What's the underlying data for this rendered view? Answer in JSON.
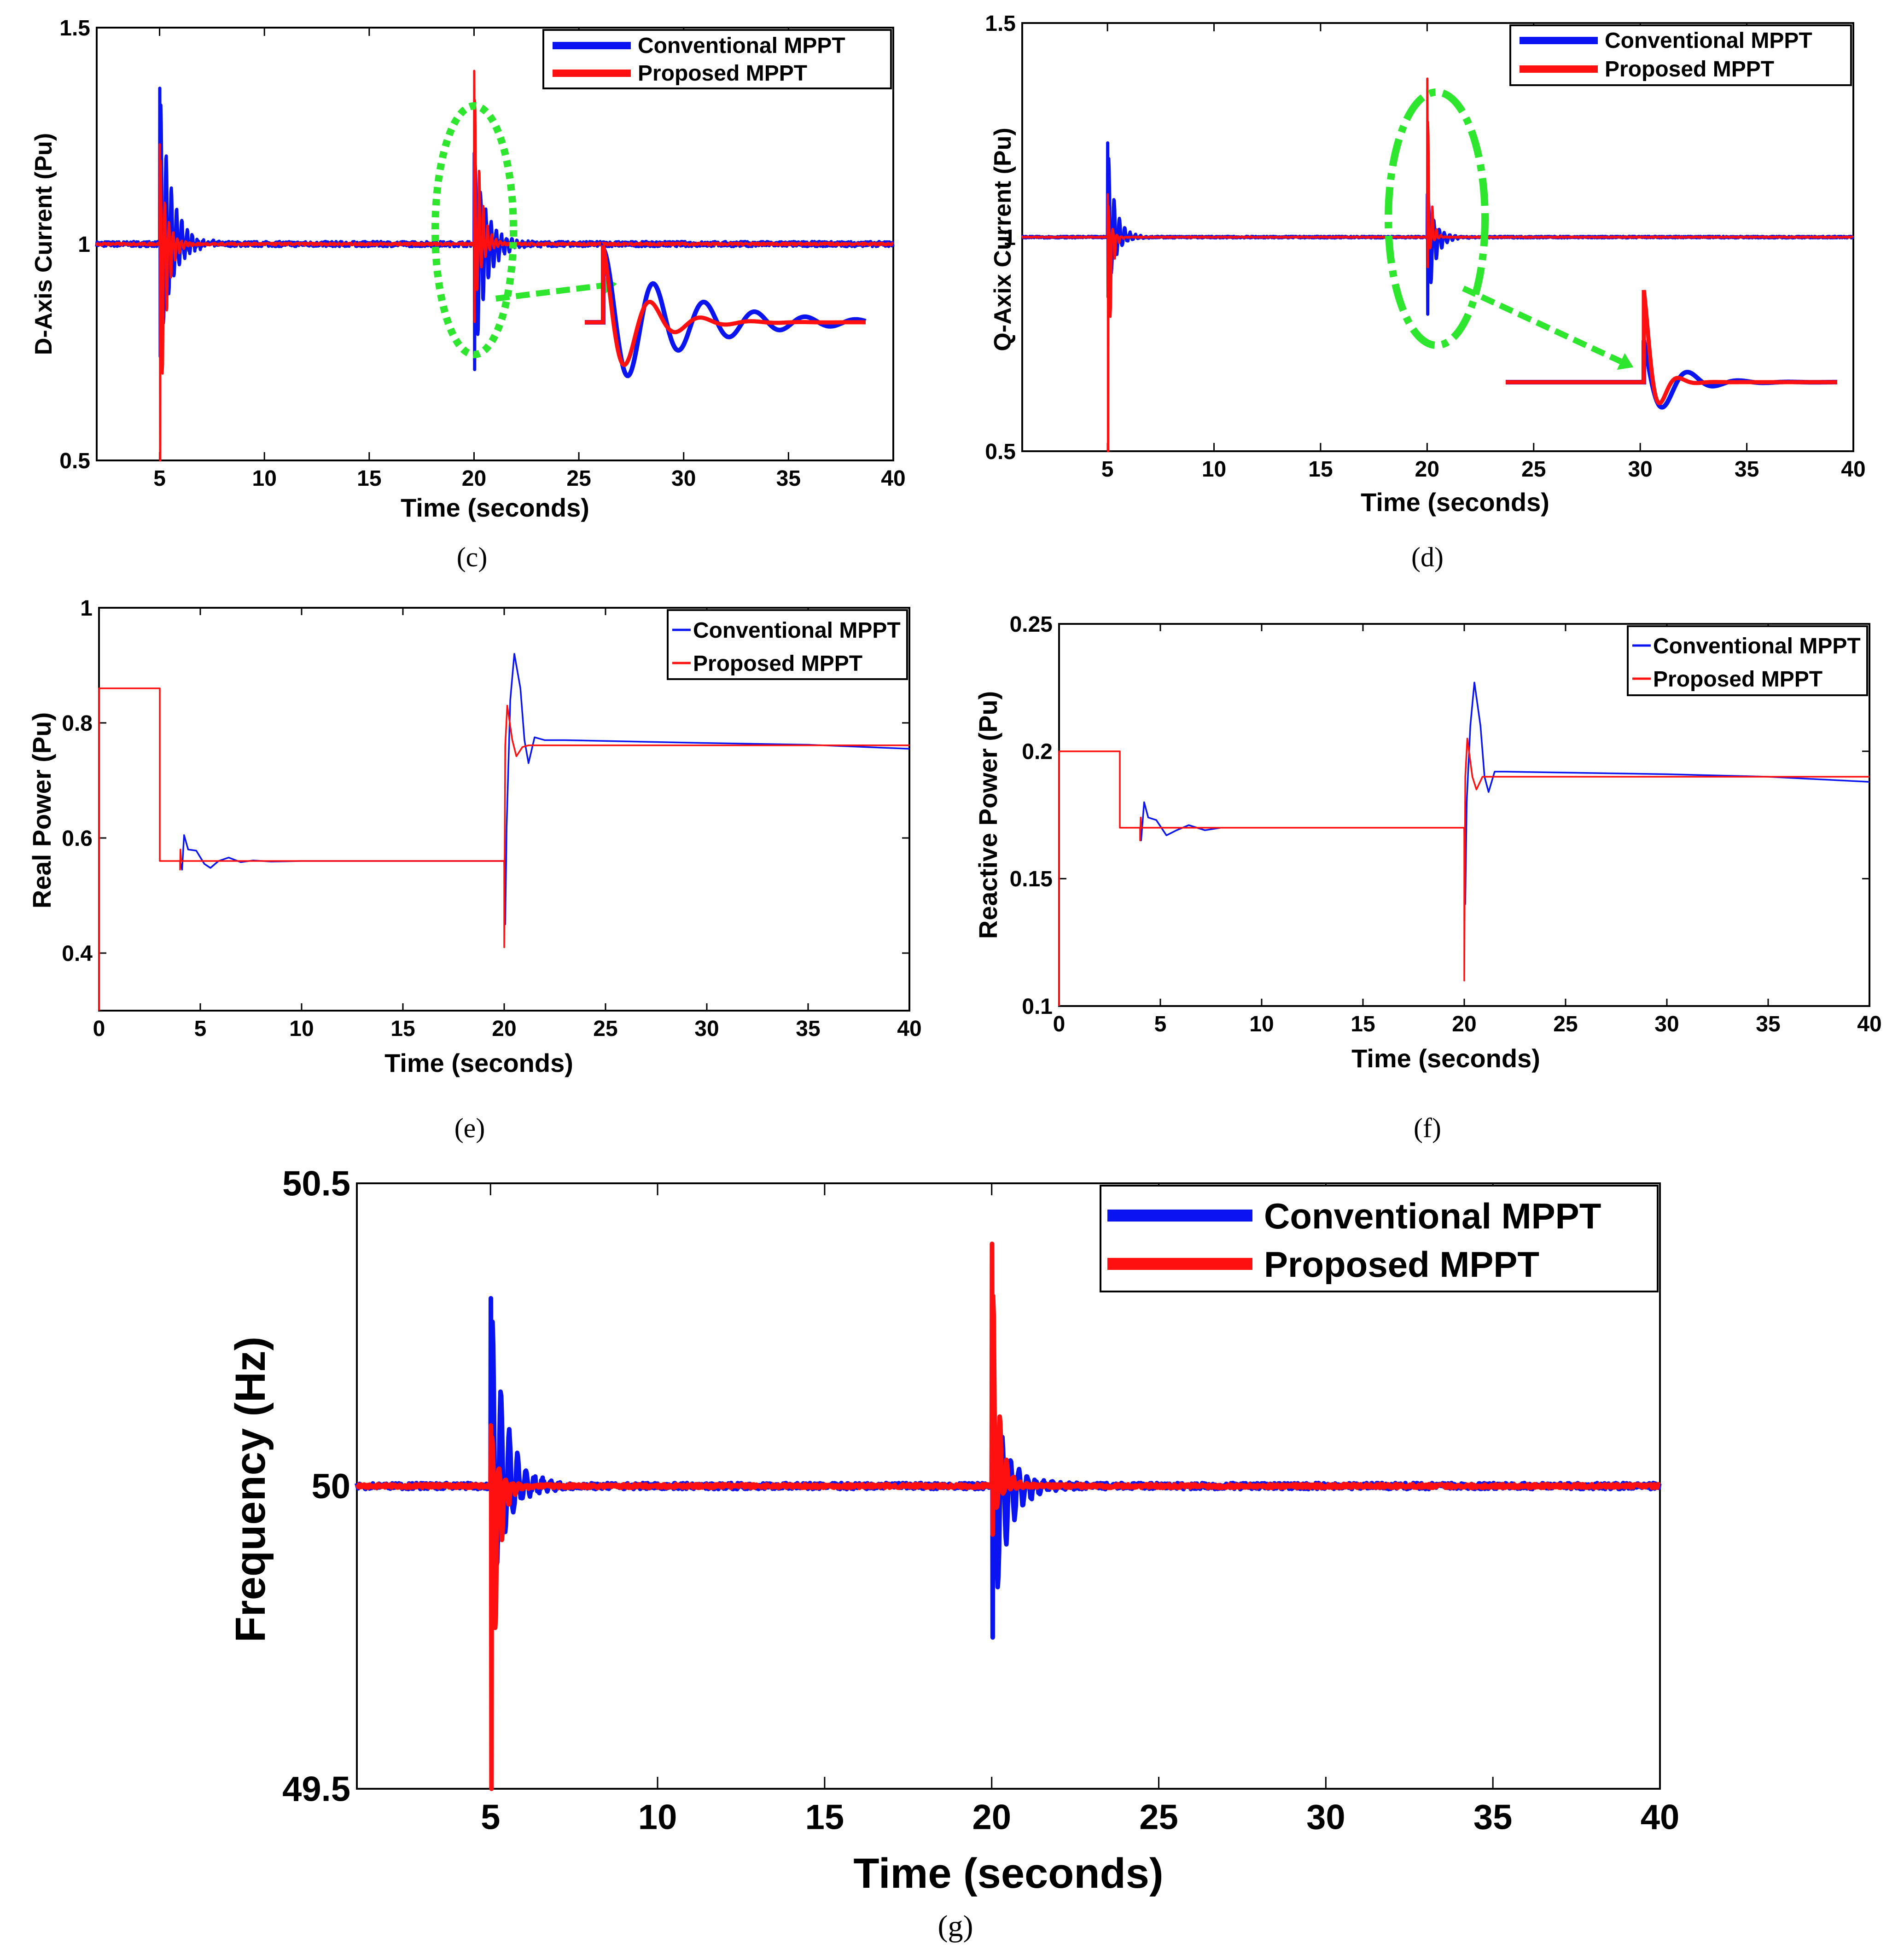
{
  "colors": {
    "conventional": "#0a14f0",
    "proposed": "#ff1010",
    "highlight": "#2ee62e",
    "axes": "#000000"
  },
  "chart_data": [
    {
      "id": "c",
      "caption": "(c)",
      "type": "line",
      "title": "",
      "xlabel": "Time (seconds)",
      "ylabel": "D-Axis Current (Pu)",
      "xlim": [
        2,
        40
      ],
      "ylim": [
        0.5,
        1.5
      ],
      "x_ticks": [
        5,
        10,
        15,
        20,
        25,
        30,
        35,
        40
      ],
      "y_ticks": [
        0.5,
        1,
        1.5
      ],
      "x_tick_labels": [
        "5",
        "10",
        "15",
        "20",
        "25",
        "30",
        "35",
        "40"
      ],
      "y_tick_labels": [
        "0.5",
        "1",
        "1.5"
      ],
      "legend": {
        "position": "top-right",
        "entries": [
          "Conventional MPPT",
          "Proposed MPPT"
        ]
      },
      "series": [
        {
          "name": "Conventional MPPT",
          "style": "thick",
          "baseline": 1.0,
          "events": [
            {
              "x": 5,
              "peak": 1.36,
              "trough": 0.74,
              "tau": 0.55,
              "period": 0.25
            },
            {
              "x": 20,
              "peak": 1.21,
              "trough": 0.71,
              "tau": 0.55,
              "period": 0.25
            }
          ],
          "noise": 0.006
        },
        {
          "name": "Proposed MPPT",
          "style": "thick",
          "baseline": 1.0,
          "events": [
            {
              "x": 5,
              "peak": 1.23,
              "trough": 0.5,
              "tau": 0.3,
              "period": 0.2
            },
            {
              "x": 20,
              "peak": 1.4,
              "trough": 0.82,
              "tau": 0.3,
              "period": 0.2
            }
          ],
          "noise": 0.003
        }
      ],
      "annotation": {
        "type": "zoom",
        "ellipse_center": [
          20,
          1.0
        ],
        "inset_xlim": [
          27,
          38.5
        ],
        "inset_baseline": 0.68
      }
    },
    {
      "id": "d",
      "caption": "(d)",
      "type": "line",
      "title": "",
      "xlabel": "Time (seconds)",
      "ylabel": "Q-Axix Current (Pu)",
      "xlim": [
        1,
        40
      ],
      "ylim": [
        0.5,
        1.5
      ],
      "x_ticks": [
        5,
        10,
        15,
        20,
        25,
        30,
        35,
        40
      ],
      "y_ticks": [
        0.5,
        1,
        1.5
      ],
      "x_tick_labels": [
        "5",
        "10",
        "15",
        "20",
        "25",
        "30",
        "35",
        "40"
      ],
      "y_tick_labels": [
        "0.5",
        "1",
        "1.5"
      ],
      "legend": {
        "position": "top-right",
        "entries": [
          "Conventional MPPT",
          "Proposed MPPT"
        ]
      },
      "series": [
        {
          "name": "Conventional MPPT",
          "style": "thick",
          "baseline": 1.0,
          "events": [
            {
              "x": 5,
              "peak": 1.22,
              "trough": 0.86,
              "tau": 0.35,
              "period": 0.25
            },
            {
              "x": 20,
              "peak": 1.1,
              "trough": 0.82,
              "tau": 0.35,
              "period": 0.25
            }
          ],
          "noise": 0.002
        },
        {
          "name": "Proposed MPPT",
          "style": "thick",
          "baseline": 1.0,
          "events": [
            {
              "x": 5,
              "peak": 1.1,
              "trough": 0.5,
              "tau": 0.15,
              "period": 0.2
            },
            {
              "x": 20,
              "peak": 1.37,
              "trough": 0.93,
              "tau": 0.15,
              "period": 0.2
            }
          ],
          "noise": 0.001
        }
      ],
      "annotation": {
        "type": "zoom",
        "ellipse_center": [
          20.2,
          1.05
        ],
        "inset_xlim": [
          23,
          39
        ],
        "inset_baseline": 0.65
      }
    },
    {
      "id": "e",
      "caption": "(e)",
      "type": "line",
      "title": "",
      "xlabel": "Time (seconds)",
      "ylabel": "Real Power (Pu)",
      "xlim": [
        0,
        40
      ],
      "ylim": [
        0.3,
        1
      ],
      "x_ticks": [
        0,
        5,
        10,
        15,
        20,
        25,
        30,
        35,
        40
      ],
      "y_ticks": [
        0.4,
        0.6,
        0.8,
        1
      ],
      "x_tick_labels": [
        "0",
        "5",
        "10",
        "15",
        "20",
        "25",
        "30",
        "35",
        "40"
      ],
      "y_tick_labels": [
        "0.4",
        "0.6",
        "0.8",
        "1"
      ],
      "legend": {
        "position": "top-right",
        "entries": [
          "Conventional MPPT",
          "Proposed MPPT"
        ]
      },
      "series": [
        {
          "name": "Conventional MPPT",
          "style": "thin",
          "points": [
            [
              4,
              0.56
            ],
            [
              4.1,
              0.545
            ],
            [
              4.2,
              0.605
            ],
            [
              4.4,
              0.58
            ],
            [
              4.8,
              0.578
            ],
            [
              5.2,
              0.555
            ],
            [
              5.5,
              0.548
            ],
            [
              5.9,
              0.56
            ],
            [
              6.4,
              0.566
            ],
            [
              7,
              0.558
            ],
            [
              7.6,
              0.561
            ],
            [
              8.5,
              0.559
            ],
            [
              10,
              0.56
            ],
            [
              19.9,
              0.56
            ],
            [
              20,
              0.56
            ],
            [
              20.05,
              0.45
            ],
            [
              20.12,
              0.62
            ],
            [
              20.3,
              0.84
            ],
            [
              20.5,
              0.92
            ],
            [
              20.8,
              0.86
            ],
            [
              21,
              0.77
            ],
            [
              21.2,
              0.73
            ],
            [
              21.5,
              0.775
            ],
            [
              22,
              0.77
            ],
            [
              23,
              0.77
            ],
            [
              30,
              0.765
            ],
            [
              35,
              0.762
            ],
            [
              40,
              0.755
            ]
          ]
        },
        {
          "name": "Proposed MPPT",
          "style": "thin",
          "points": [
            [
              0,
              0.3
            ],
            [
              0,
              0.86
            ],
            [
              3,
              0.86
            ],
            [
              3,
              0.56
            ],
            [
              4,
              0.56
            ],
            [
              4,
              0.545
            ],
            [
              4.02,
              0.58
            ],
            [
              4.05,
              0.56
            ],
            [
              10,
              0.56
            ],
            [
              20,
              0.56
            ],
            [
              20,
              0.41
            ],
            [
              20.05,
              0.76
            ],
            [
              20.15,
              0.83
            ],
            [
              20.4,
              0.77
            ],
            [
              20.6,
              0.742
            ],
            [
              20.9,
              0.758
            ],
            [
              21.2,
              0.761
            ],
            [
              25,
              0.761
            ],
            [
              40,
              0.761
            ]
          ]
        }
      ]
    },
    {
      "id": "f",
      "caption": "(f)",
      "type": "line",
      "title": "",
      "xlabel": "Time (seconds)",
      "ylabel": "Reactive Power (Pu)",
      "xlim": [
        0,
        40
      ],
      "ylim": [
        0.1,
        0.25
      ],
      "x_ticks": [
        0,
        5,
        10,
        15,
        20,
        25,
        30,
        35,
        40
      ],
      "y_ticks": [
        0.1,
        0.15,
        0.2,
        0.25
      ],
      "x_tick_labels": [
        "0",
        "5",
        "10",
        "15",
        "20",
        "25",
        "30",
        "35",
        "40"
      ],
      "y_tick_labels": [
        "0.1",
        "0.15",
        "0.2",
        "0.25"
      ],
      "legend": {
        "position": "top-right",
        "entries": [
          "Conventional MPPT",
          "Proposed MPPT"
        ]
      },
      "series": [
        {
          "name": "Conventional MPPT",
          "style": "thin",
          "points": [
            [
              4,
              0.17
            ],
            [
              4.05,
              0.165
            ],
            [
              4.2,
              0.18
            ],
            [
              4.4,
              0.174
            ],
            [
              4.8,
              0.173
            ],
            [
              5.3,
              0.167
            ],
            [
              5.8,
              0.169
            ],
            [
              6.4,
              0.171
            ],
            [
              7.2,
              0.169
            ],
            [
              8,
              0.17
            ],
            [
              9,
              0.17
            ],
            [
              19.9,
              0.17
            ],
            [
              20,
              0.17
            ],
            [
              20.05,
              0.14
            ],
            [
              20.12,
              0.18
            ],
            [
              20.3,
              0.21
            ],
            [
              20.5,
              0.227
            ],
            [
              20.8,
              0.21
            ],
            [
              21,
              0.19
            ],
            [
              21.2,
              0.184
            ],
            [
              21.5,
              0.192
            ],
            [
              22,
              0.192
            ],
            [
              30,
              0.191
            ],
            [
              35,
              0.19
            ],
            [
              40,
              0.188
            ]
          ]
        },
        {
          "name": "Proposed MPPT",
          "style": "thin",
          "points": [
            [
              0,
              0.1
            ],
            [
              0,
              0.2
            ],
            [
              3,
              0.2
            ],
            [
              3,
              0.17
            ],
            [
              4,
              0.17
            ],
            [
              4,
              0.165
            ],
            [
              4.03,
              0.174
            ],
            [
              4.06,
              0.17
            ],
            [
              10,
              0.17
            ],
            [
              20,
              0.17
            ],
            [
              20,
              0.11
            ],
            [
              20.05,
              0.19
            ],
            [
              20.15,
              0.205
            ],
            [
              20.4,
              0.19
            ],
            [
              20.6,
              0.185
            ],
            [
              20.9,
              0.19
            ],
            [
              21.2,
              0.19
            ],
            [
              40,
              0.19
            ]
          ]
        }
      ]
    },
    {
      "id": "g",
      "caption": "(g)",
      "type": "line",
      "title": "",
      "xlabel": "Time (seconds)",
      "ylabel": "Frequency (Hz)",
      "xlim": [
        1,
        40
      ],
      "ylim": [
        49.5,
        50.5
      ],
      "x_ticks": [
        5,
        10,
        15,
        20,
        25,
        30,
        35,
        40
      ],
      "y_ticks": [
        49.5,
        50,
        50.5
      ],
      "x_tick_labels": [
        "5",
        "10",
        "15",
        "20",
        "25",
        "30",
        "35",
        "40"
      ],
      "y_tick_labels": [
        "49.5",
        "50",
        "50.5"
      ],
      "legend": {
        "position": "top-right",
        "entries": [
          "Conventional MPPT",
          "Proposed MPPT"
        ]
      },
      "series": [
        {
          "name": "Conventional MPPT",
          "style": "thick",
          "baseline": 50.0,
          "events": [
            {
              "x": 5,
              "peak": 50.31,
              "trough": 49.8,
              "tau": 0.45,
              "period": 0.25
            },
            {
              "x": 20,
              "peak": 50.16,
              "trough": 49.75,
              "tau": 0.45,
              "period": 0.25
            }
          ],
          "noise": 0.005
        },
        {
          "name": "Proposed MPPT",
          "style": "thick",
          "baseline": 50.0,
          "events": [
            {
              "x": 5,
              "peak": 50.1,
              "trough": 49.5,
              "tau": 0.2,
              "period": 0.2
            },
            {
              "x": 20,
              "peak": 50.4,
              "trough": 49.92,
              "tau": 0.2,
              "period": 0.2
            }
          ],
          "noise": 0.003
        }
      ]
    }
  ]
}
